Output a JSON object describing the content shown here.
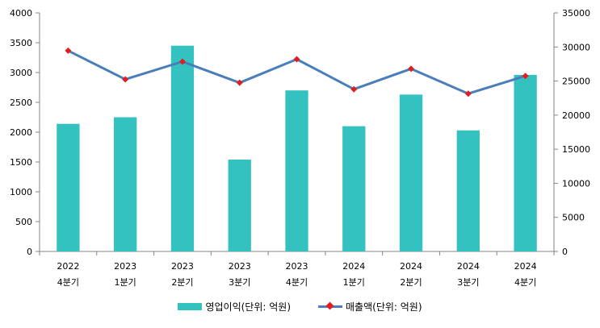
{
  "colors": {
    "bar": "#33C2BF",
    "line": "#4A7EBB",
    "marker": "#E01E1E",
    "axis": "#868686"
  },
  "chart_data": {
    "type": "bar",
    "categories": [
      [
        "2022",
        "4분기"
      ],
      [
        "2023",
        "1분기"
      ],
      [
        "2023",
        "2분기"
      ],
      [
        "2023",
        "3분기"
      ],
      [
        "2023",
        "4분기"
      ],
      [
        "2024",
        "1분기"
      ],
      [
        "2024",
        "2분기"
      ],
      [
        "2024",
        "3분기"
      ],
      [
        "2024",
        "4분기"
      ]
    ],
    "series": [
      {
        "name": "영업이익(단위: 억원)",
        "type": "bar",
        "axis": "left",
        "values": [
          2140,
          2250,
          3450,
          1540,
          2700,
          2100,
          2630,
          2030,
          2960
        ]
      },
      {
        "name": "매출액(단위: 억원)",
        "type": "line",
        "axis": "right",
        "marker": "diamond",
        "values": [
          29450,
          25250,
          27850,
          24750,
          28200,
          23800,
          26800,
          23150,
          25750
        ]
      }
    ],
    "y_left": {
      "range": [
        0,
        4000
      ],
      "step": 500,
      "ticks": [
        "0",
        "500",
        "1000",
        "1500",
        "2000",
        "2500",
        "3000",
        "3500",
        "4000"
      ]
    },
    "y_right": {
      "range": [
        0,
        35000
      ],
      "step": 5000,
      "ticks": [
        "0",
        "5000",
        "10000",
        "15000",
        "20000",
        "25000",
        "30000",
        "35000"
      ]
    },
    "grid": false,
    "legend_position": "bottom"
  }
}
